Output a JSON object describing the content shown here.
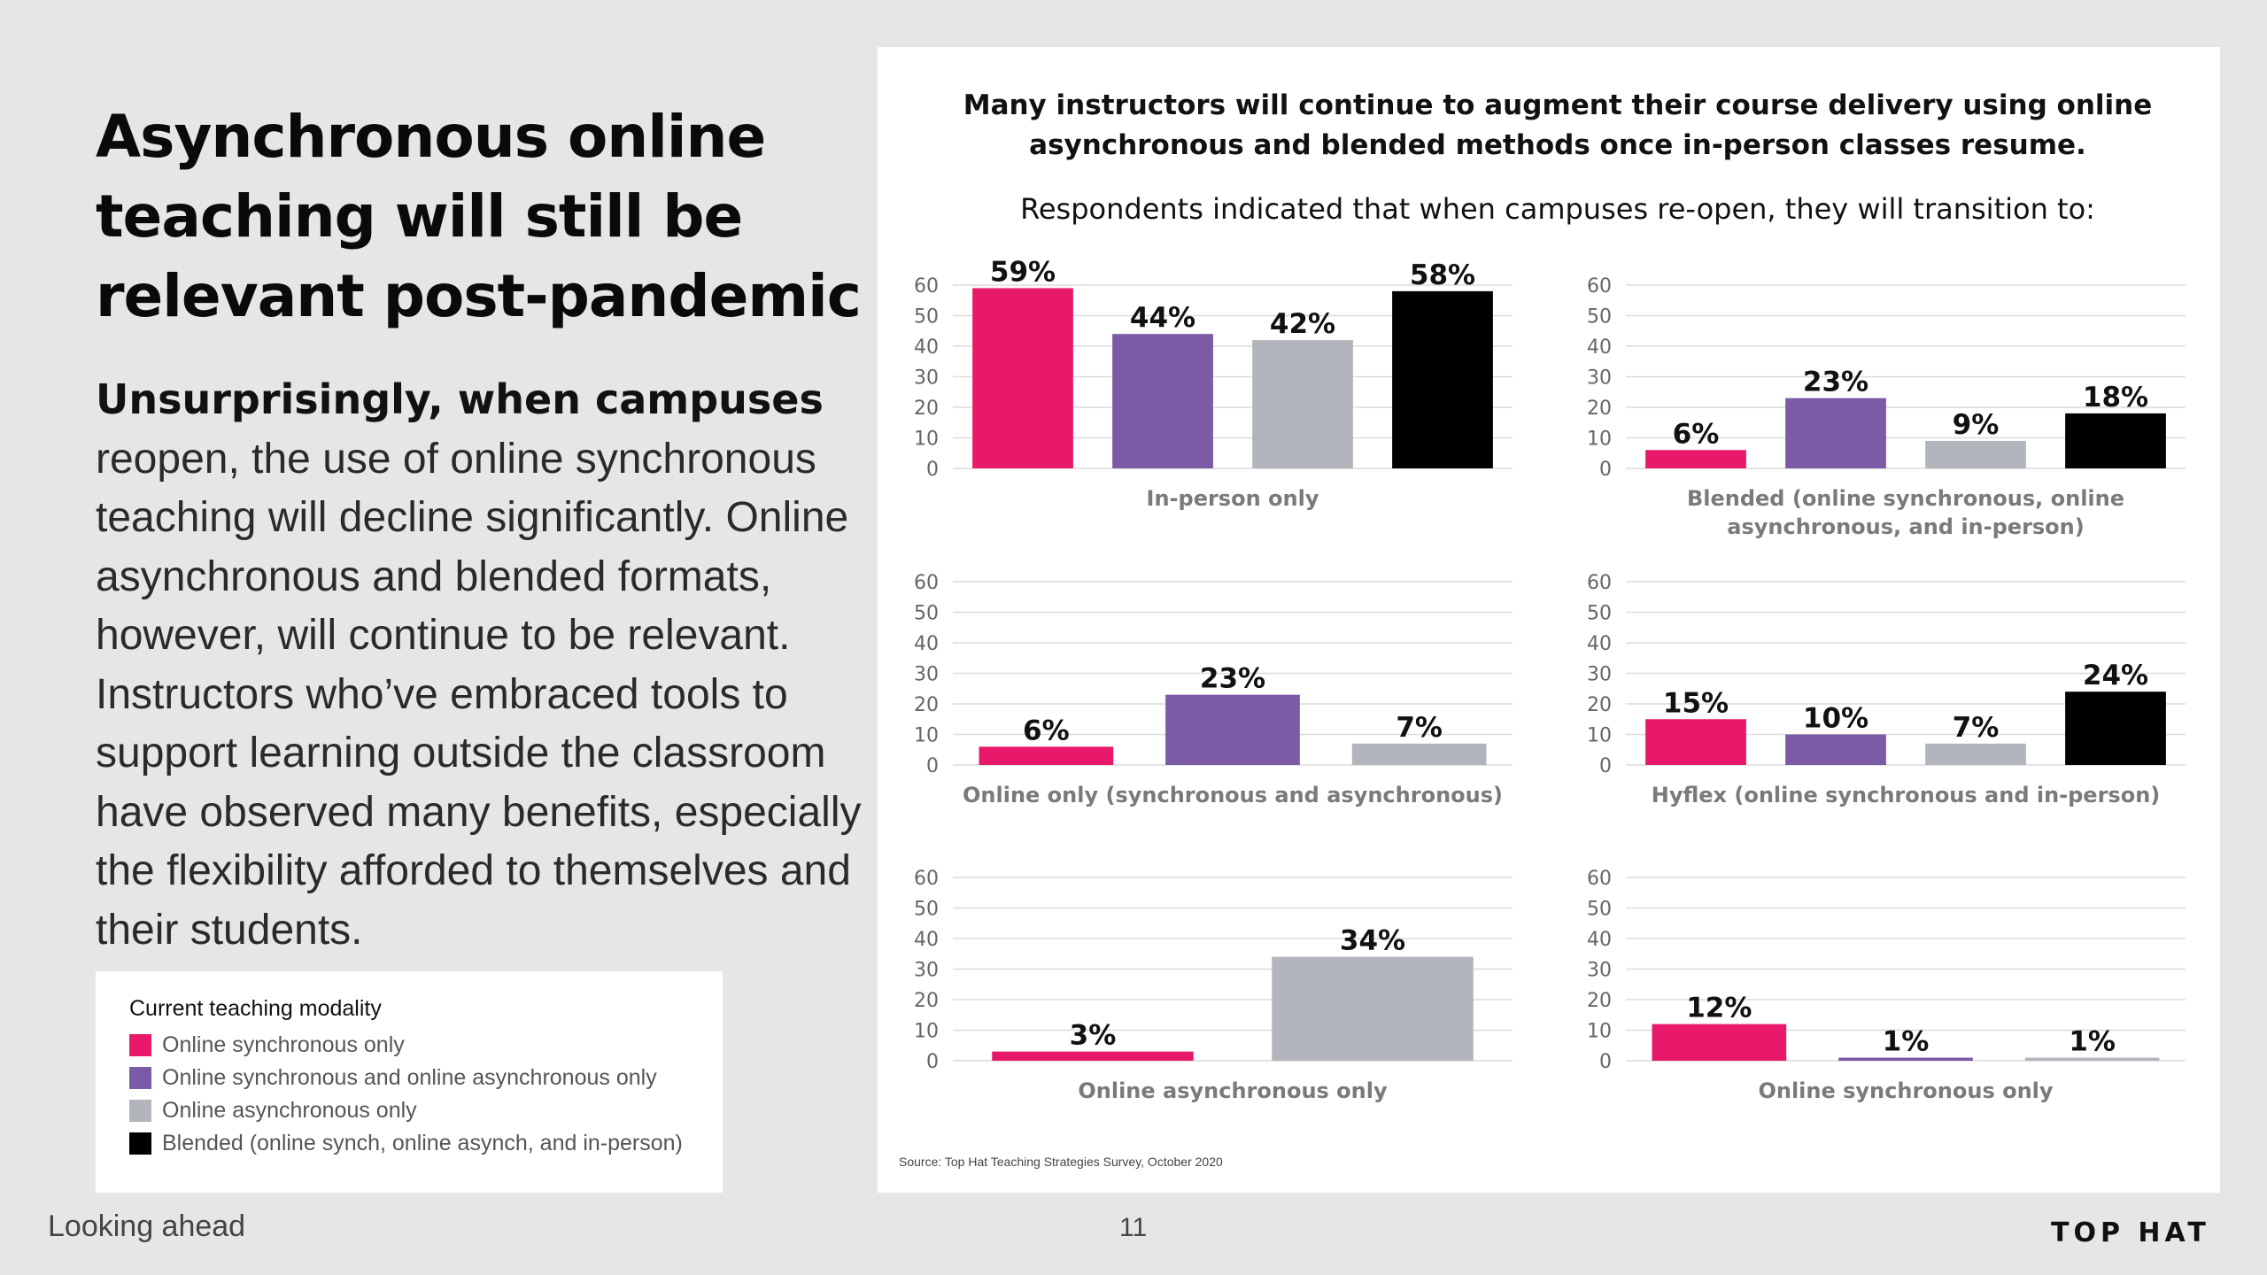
{
  "slide": {
    "title": "Asynchronous online teaching will still be relevant post-pandemic",
    "body_lead": "Unsurprisingly, when campuses",
    "body_rest": "reopen, the use of online synchronous teaching will decline significantly. Online asynchronous and blended formats, however, will continue to be relevant. Instructors who’ve embraced tools to support learning outside the classroom have observed many benefits, especially the flexibility afforded to themselves and their students."
  },
  "legend": {
    "title": "Current teaching modality",
    "items": [
      {
        "label": "Online synchronous only",
        "color": "#e8196a"
      },
      {
        "label": "Online synchronous and online asynchronous only",
        "color": "#7b5aa6"
      },
      {
        "label": "Online asynchronous only",
        "color": "#b3b5bc"
      },
      {
        "label": "Blended (online synch, online asynch, and in-person)",
        "color": "#000000"
      }
    ]
  },
  "panel": {
    "headline": "Many instructors will continue to augment their course delivery using online asynchronous and blended methods once in-person classes resume.",
    "subtitle": "Respondents indicated that when campuses re-open, they will transition to:",
    "source": "Source: Top Hat Teaching Strategies Survey, October 2020"
  },
  "footer": {
    "left": "Looking ahead",
    "page_number": "11",
    "brand": "TOP HAT"
  },
  "chart_data": [
    {
      "type": "bar",
      "xlabel": "In-person only",
      "ylim": [
        0,
        60
      ],
      "yticks": [
        0,
        10,
        20,
        30,
        40,
        50,
        60
      ],
      "grid": true,
      "categories": [
        "Online synchronous only",
        "Online synchronous and online asynchronous only",
        "Online asynchronous only",
        "Blended (online synch, online asynch, and in-person)"
      ],
      "values": [
        59,
        44,
        42,
        58
      ],
      "labels": [
        "59%",
        "44%",
        "42%",
        "58%"
      ],
      "colors": [
        "#e8196a",
        "#7b5aa6",
        "#b3b5bc",
        "#000000"
      ]
    },
    {
      "type": "bar",
      "xlabel": "Blended (online synchronous, online asynchronous, and in-person)",
      "ylim": [
        0,
        60
      ],
      "yticks": [
        0,
        10,
        20,
        30,
        40,
        50,
        60
      ],
      "grid": true,
      "categories": [
        "Online synchronous only",
        "Online synchronous and online asynchronous only",
        "Online asynchronous only",
        "Blended (online synch, online asynch, and in-person)"
      ],
      "values": [
        6,
        23,
        9,
        18
      ],
      "labels": [
        "6%",
        "23%",
        "9%",
        "18%"
      ],
      "colors": [
        "#e8196a",
        "#7b5aa6",
        "#b3b5bc",
        "#000000"
      ]
    },
    {
      "type": "bar",
      "xlabel": "Online only (synchronous and asynchronous)",
      "ylim": [
        0,
        60
      ],
      "yticks": [
        0,
        10,
        20,
        30,
        40,
        50,
        60
      ],
      "grid": true,
      "categories": [
        "Online synchronous only",
        "Online synchronous and online asynchronous only",
        "Online asynchronous only"
      ],
      "values": [
        6,
        23,
        7
      ],
      "labels": [
        "6%",
        "23%",
        "7%"
      ],
      "colors": [
        "#e8196a",
        "#7b5aa6",
        "#b3b5bc"
      ]
    },
    {
      "type": "bar",
      "xlabel": "Hyflex (online synchronous and in-person)",
      "ylim": [
        0,
        60
      ],
      "yticks": [
        0,
        10,
        20,
        30,
        40,
        50,
        60
      ],
      "grid": true,
      "categories": [
        "Online synchronous only",
        "Online synchronous and online asynchronous only",
        "Online asynchronous only",
        "Blended (online synch, online asynch, and in-person)"
      ],
      "values": [
        15,
        10,
        7,
        24
      ],
      "labels": [
        "15%",
        "10%",
        "7%",
        "24%"
      ],
      "colors": [
        "#e8196a",
        "#7b5aa6",
        "#b3b5bc",
        "#000000"
      ]
    },
    {
      "type": "bar",
      "xlabel": "Online asynchronous only",
      "ylim": [
        0,
        60
      ],
      "yticks": [
        0,
        10,
        20,
        30,
        40,
        50,
        60
      ],
      "grid": true,
      "categories": [
        "Online synchronous only",
        "Online asynchronous only"
      ],
      "values": [
        3,
        34
      ],
      "labels": [
        "3%",
        "34%"
      ],
      "colors": [
        "#e8196a",
        "#b3b5bc"
      ]
    },
    {
      "type": "bar",
      "xlabel": "Online synchronous only",
      "ylim": [
        0,
        60
      ],
      "yticks": [
        0,
        10,
        20,
        30,
        40,
        50,
        60
      ],
      "grid": true,
      "categories": [
        "Online synchronous only",
        "Online synchronous and online asynchronous only",
        "Online asynchronous only"
      ],
      "values": [
        12,
        1,
        1
      ],
      "labels": [
        "12%",
        "1%",
        "1%"
      ],
      "colors": [
        "#e8196a",
        "#7b5aa6",
        "#b3b5bc"
      ]
    }
  ]
}
